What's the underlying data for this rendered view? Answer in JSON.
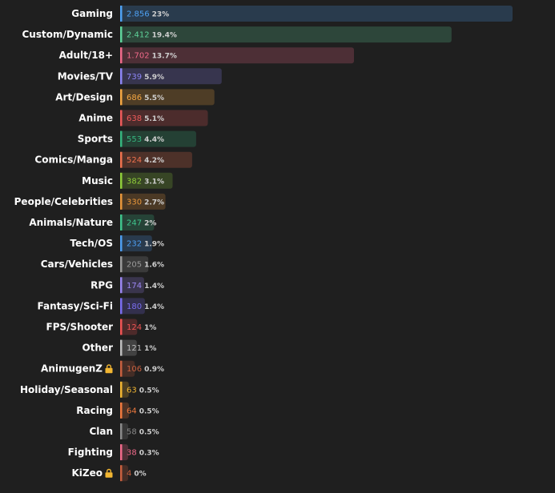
{
  "chart_data": {
    "type": "bar",
    "orientation": "horizontal",
    "title": "",
    "xlabel": "",
    "ylabel": "",
    "grid": false,
    "xlim": [
      0,
      2856
    ],
    "categories": [
      {
        "label": "Gaming",
        "value": 2856,
        "value_text": "2.856",
        "percent": "23%",
        "color": "#4ea1f3",
        "locked": false
      },
      {
        "label": "Custom/Dynamic",
        "value": 2412,
        "value_text": "2.412",
        "percent": "19.4%",
        "color": "#5fd39a",
        "locked": false
      },
      {
        "label": "Adult/18+",
        "value": 1702,
        "value_text": "1.702",
        "percent": "13.7%",
        "color": "#f06a8a",
        "locked": false
      },
      {
        "label": "Movies/TV",
        "value": 739,
        "value_text": "739",
        "percent": "5.9%",
        "color": "#8c85f5",
        "locked": false
      },
      {
        "label": "Art/Design",
        "value": 686,
        "value_text": "686",
        "percent": "5.5%",
        "color": "#f5a742",
        "locked": false
      },
      {
        "label": "Anime",
        "value": 638,
        "value_text": "638",
        "percent": "5.1%",
        "color": "#ee5a5a",
        "locked": false
      },
      {
        "label": "Sports",
        "value": 553,
        "value_text": "553",
        "percent": "4.4%",
        "color": "#35b57e",
        "locked": false
      },
      {
        "label": "Comics/Manga",
        "value": 524,
        "value_text": "524",
        "percent": "4.2%",
        "color": "#f0724e",
        "locked": false
      },
      {
        "label": "Music",
        "value": 382,
        "value_text": "382",
        "percent": "3.1%",
        "color": "#8fce3a",
        "locked": false
      },
      {
        "label": "People/Celebrities",
        "value": 330,
        "value_text": "330",
        "percent": "2.7%",
        "color": "#e8963a",
        "locked": false
      },
      {
        "label": "Animals/Nature",
        "value": 247,
        "value_text": "247",
        "percent": "2%",
        "color": "#3fc48c",
        "locked": false
      },
      {
        "label": "Tech/OS",
        "value": 232,
        "value_text": "232",
        "percent": "1.9%",
        "color": "#4d9df0",
        "locked": false
      },
      {
        "label": "Cars/Vehicles",
        "value": 205,
        "value_text": "205",
        "percent": "1.6%",
        "color": "#9a9a9a",
        "locked": false
      },
      {
        "label": "RPG",
        "value": 174,
        "value_text": "174",
        "percent": "1.4%",
        "color": "#9b86f2",
        "locked": false
      },
      {
        "label": "Fantasy/Sci-Fi",
        "value": 180,
        "value_text": "180",
        "percent": "1.4%",
        "color": "#7a6df0",
        "locked": false
      },
      {
        "label": "FPS/Shooter",
        "value": 124,
        "value_text": "124",
        "percent": "1%",
        "color": "#f05454",
        "locked": false
      },
      {
        "label": "Other",
        "value": 121,
        "value_text": "121",
        "percent": "1%",
        "color": "#bdbdbd",
        "locked": false
      },
      {
        "label": "AnimugenZ",
        "value": 106,
        "value_text": "106",
        "percent": "0.9%",
        "color": "#c8603f",
        "locked": true
      },
      {
        "label": "Holiday/Seasonal",
        "value": 63,
        "value_text": "63",
        "percent": "0.5%",
        "color": "#f2b632",
        "locked": false
      },
      {
        "label": "Racing",
        "value": 64,
        "value_text": "64",
        "percent": "0.5%",
        "color": "#f07a3e",
        "locked": false
      },
      {
        "label": "Clan",
        "value": 58,
        "value_text": "58",
        "percent": "0.5%",
        "color": "#8a8a8a",
        "locked": false
      },
      {
        "label": "Fighting",
        "value": 38,
        "value_text": "38",
        "percent": "0.3%",
        "color": "#f06a8a",
        "locked": false
      },
      {
        "label": "KiZeo",
        "value": 4,
        "value_text": "4",
        "percent": "0%",
        "color": "#c8603f",
        "locked": true
      }
    ]
  },
  "icons": {
    "lock": "lock-icon"
  }
}
